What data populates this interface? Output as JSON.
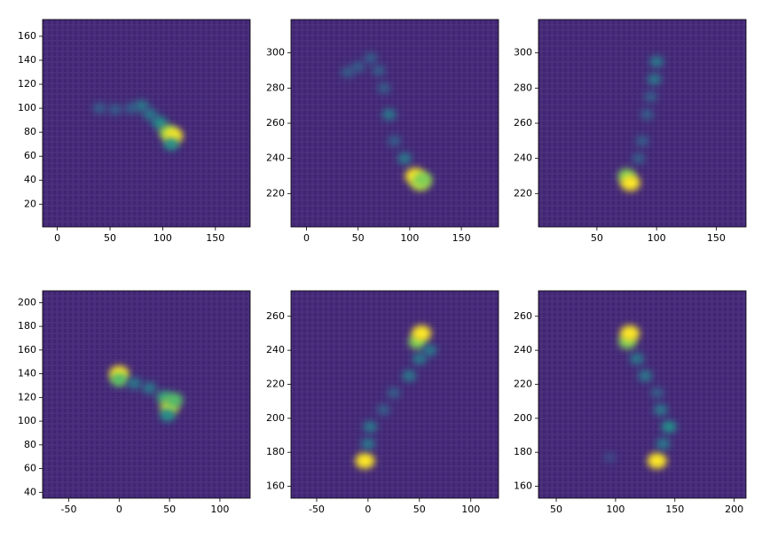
{
  "chart_data": [
    {
      "type": "heatmap",
      "xlim": [
        -14,
        183
      ],
      "ylim": [
        1,
        174
      ],
      "xticks": [
        0,
        50,
        100,
        150
      ],
      "yticks": [
        20,
        40,
        60,
        80,
        100,
        120,
        140,
        160
      ],
      "x": [
        40,
        55,
        70,
        80,
        88,
        97,
        105,
        110,
        108
      ],
      "y": [
        100,
        99,
        100,
        102,
        95,
        88,
        80,
        77,
        70
      ],
      "intensity": [
        0.3,
        0.3,
        0.3,
        0.4,
        0.4,
        0.5,
        0.8,
        1,
        0.5
      ]
    },
    {
      "type": "heatmap",
      "xlim": [
        -15,
        186
      ],
      "ylim": [
        201,
        319
      ],
      "xticks": [
        0,
        50,
        100,
        150
      ],
      "yticks": [
        220,
        240,
        260,
        280,
        300
      ],
      "x": [
        40,
        50,
        62,
        70,
        75,
        80,
        85,
        95,
        105,
        110,
        113
      ],
      "y": [
        289,
        292,
        297,
        290,
        280,
        265,
        250,
        240,
        230,
        226,
        228
      ],
      "intensity": [
        0.3,
        0.3,
        0.3,
        0.3,
        0.3,
        0.4,
        0.3,
        0.4,
        1,
        0.9,
        0.8
      ]
    },
    {
      "type": "heatmap",
      "xlim": [
        1,
        175
      ],
      "ylim": [
        201,
        319
      ],
      "xticks": [
        50,
        100,
        150
      ],
      "yticks": [
        220,
        240,
        260,
        280,
        300
      ],
      "x": [
        100,
        98,
        95,
        92,
        88,
        85,
        75,
        78
      ],
      "y": [
        295,
        285,
        275,
        265,
        250,
        240,
        230,
        226
      ],
      "intensity": [
        0.4,
        0.4,
        0.3,
        0.3,
        0.3,
        0.3,
        0.8,
        1
      ]
    },
    {
      "type": "heatmap",
      "xlim": [
        -76,
        130
      ],
      "ylim": [
        35,
        210
      ],
      "xticks": [
        -50,
        0,
        50,
        100
      ],
      "yticks": [
        40,
        60,
        80,
        100,
        120,
        140,
        160,
        180,
        200
      ],
      "x": [
        0,
        0,
        15,
        30,
        45,
        50,
        55,
        48
      ],
      "y": [
        140,
        135,
        132,
        128,
        120,
        112,
        118,
        105
      ],
      "intensity": [
        1,
        0.7,
        0.4,
        0.4,
        0.6,
        0.9,
        0.7,
        0.5
      ]
    },
    {
      "type": "heatmap",
      "xlim": [
        -75,
        127
      ],
      "ylim": [
        153,
        275
      ],
      "xticks": [
        -50,
        0,
        50,
        100
      ],
      "yticks": [
        160,
        180,
        200,
        220,
        240,
        260
      ],
      "x": [
        -3,
        0,
        2,
        15,
        25,
        40,
        50,
        48,
        52,
        60
      ],
      "y": [
        175,
        185,
        195,
        205,
        215,
        225,
        235,
        245,
        250,
        240
      ],
      "intensity": [
        1,
        0.4,
        0.4,
        0.3,
        0.3,
        0.4,
        0.4,
        0.8,
        1,
        0.4
      ]
    },
    {
      "type": "heatmap",
      "xlim": [
        35,
        210
      ],
      "ylim": [
        153,
        275
      ],
      "xticks": [
        50,
        100,
        150,
        200
      ],
      "yticks": [
        160,
        180,
        200,
        220,
        240,
        260
      ],
      "x": [
        135,
        140,
        145,
        138,
        135,
        125,
        118,
        110,
        112,
        95
      ],
      "y": [
        175,
        185,
        195,
        205,
        215,
        225,
        235,
        245,
        250,
        177
      ],
      "intensity": [
        1,
        0.4,
        0.5,
        0.4,
        0.3,
        0.4,
        0.4,
        0.8,
        1,
        0.2
      ]
    }
  ]
}
